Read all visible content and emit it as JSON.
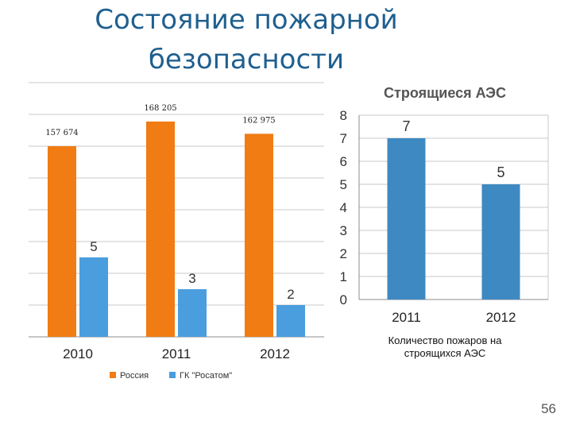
{
  "slide": {
    "title_line1": "Состояние пожарной",
    "title_line2": "безопасности",
    "page_number": "56"
  },
  "colors": {
    "russia": "#f07c13",
    "rosatom": "#4a9ede",
    "npp": "#3e89c2",
    "grid": "#c9c9c9",
    "axis": "#8c8c8c"
  },
  "chart_data": [
    {
      "type": "bar",
      "title": "",
      "categories": [
        "2010",
        "2011",
        "2012"
      ],
      "series": [
        {
          "name": "Россия",
          "values": [
            157674,
            168205,
            162975
          ],
          "labels": [
            "157 674",
            "168 205",
            "162 975"
          ]
        },
        {
          "name": "ГК \"Росатом\"",
          "values": [
            5,
            3,
            2
          ],
          "labels": [
            "5",
            "3",
            "2"
          ]
        }
      ],
      "legend": "bottom",
      "grid": true,
      "note": "two series drawn on different scales"
    },
    {
      "type": "bar",
      "title": "Строящиеся АЭС",
      "categories": [
        "2011",
        "2012"
      ],
      "values": [
        7,
        5
      ],
      "value_labels": [
        "7",
        "5"
      ],
      "ylim": [
        0,
        8
      ],
      "yticks": [
        "0",
        "1",
        "2",
        "3",
        "4",
        "5",
        "6",
        "7",
        "8"
      ],
      "xlabel": "Количество пожаров на строящихся АЭС",
      "grid": true
    }
  ]
}
